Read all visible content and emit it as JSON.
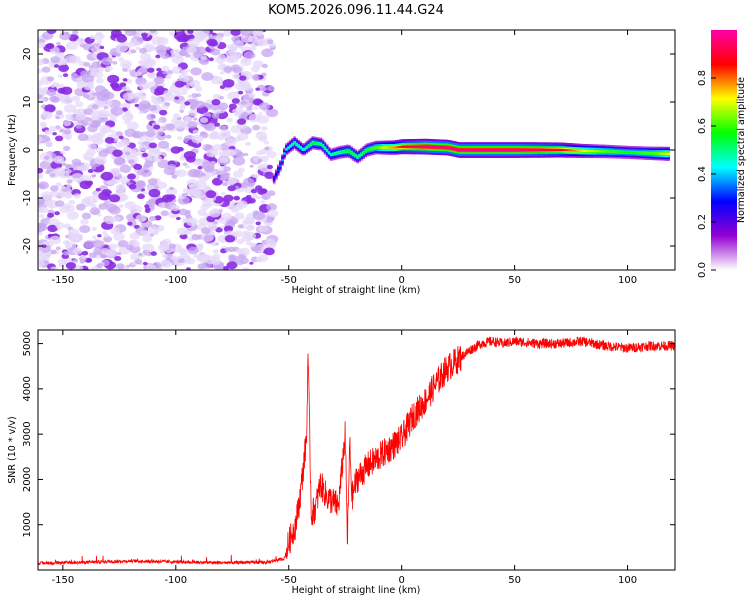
{
  "title": "KOM5.2026.096.11.44.G24",
  "chart_data": [
    {
      "type": "heatmap",
      "name": "spectrogram",
      "title": "KOM5.2026.096.11.44.G24",
      "xlabel": "Height of straight line (km)",
      "ylabel": "Frequency (Hz)",
      "xlim": [
        -161,
        121
      ],
      "ylim": [
        -25,
        25
      ],
      "xticks": [
        "-150",
        "-100",
        "-50",
        "0",
        "50",
        "100"
      ],
      "yticks": [
        "-20",
        "-10",
        "0",
        "10",
        "20"
      ],
      "noise_region_x": [
        -161,
        -57
      ],
      "ridge": {
        "x": [
          -57,
          -54,
          -52,
          -48,
          -44,
          -40,
          -36,
          -32,
          -28,
          -24,
          -20,
          -16,
          -12,
          -8,
          -4,
          0,
          5,
          10,
          15,
          20,
          25,
          30,
          40,
          50,
          60,
          70,
          80,
          90,
          100,
          110,
          118
        ],
        "freq": [
          -6,
          -3,
          0,
          1.5,
          0,
          1.5,
          1.2,
          -1,
          -0.5,
          -0.2,
          -1.5,
          0,
          0.5,
          0.5,
          0.5,
          0.7,
          0.7,
          0.7,
          0.6,
          0.5,
          0,
          0,
          0,
          0,
          0,
          0,
          -0.2,
          -0.3,
          -0.5,
          -0.7,
          -0.8
        ],
        "amplitude": [
          0.25,
          0.35,
          0.4,
          0.5,
          0.45,
          0.55,
          0.5,
          0.45,
          0.5,
          0.55,
          0.5,
          0.55,
          0.6,
          0.7,
          0.75,
          0.85,
          0.9,
          0.95,
          0.95,
          0.95,
          0.95,
          0.95,
          0.95,
          0.95,
          0.92,
          0.85,
          0.7,
          0.6,
          0.55,
          0.6,
          0.7
        ]
      },
      "colorbar": {
        "label": "Normalized spectral amplitude",
        "range": [
          0,
          1
        ],
        "ticks": [
          "0.0",
          "0.2",
          "0.4",
          "0.6",
          "0.8"
        ],
        "colors": [
          "#ffffff",
          "#9400d3",
          "#0000ff",
          "#00ffff",
          "#00ff00",
          "#ffff00",
          "#ff0000",
          "#ff00aa"
        ]
      }
    },
    {
      "type": "line",
      "name": "snr",
      "xlabel": "Height of straight line (km)",
      "ylabel": "SNR (10 * v/v)",
      "xlim": [
        -161,
        121
      ],
      "ylim": [
        0,
        5300
      ],
      "xticks": [
        "-150",
        "-100",
        "-50",
        "0",
        "50",
        "100"
      ],
      "yticks": [
        "1000",
        "2000",
        "3000",
        "4000",
        "5000"
      ],
      "series": [
        {
          "name": "SNR",
          "color": "#ff0000",
          "x": [
            -161,
            -140,
            -120,
            -100,
            -80,
            -60,
            -52,
            -50,
            -47,
            -45,
            -43,
            -42,
            -41.5,
            -40,
            -38,
            -36,
            -33,
            -30,
            -28,
            -25,
            -24,
            -23,
            -22,
            -20,
            -15,
            -10,
            -5,
            0,
            5,
            10,
            15,
            20,
            25,
            30,
            35,
            40,
            45,
            50,
            60,
            70,
            80,
            90,
            100,
            110,
            121
          ],
          "y": [
            150,
            170,
            200,
            180,
            160,
            170,
            250,
            600,
            1000,
            1600,
            2500,
            3000,
            4850,
            1200,
            1400,
            1900,
            1600,
            1500,
            1400,
            3000,
            600,
            2800,
            1600,
            2000,
            2300,
            2500,
            2700,
            2900,
            3400,
            3700,
            4100,
            4450,
            4650,
            4850,
            5000,
            5050,
            5000,
            5050,
            5000,
            5000,
            5050,
            4950,
            4900,
            4950,
            4950
          ]
        }
      ]
    }
  ]
}
